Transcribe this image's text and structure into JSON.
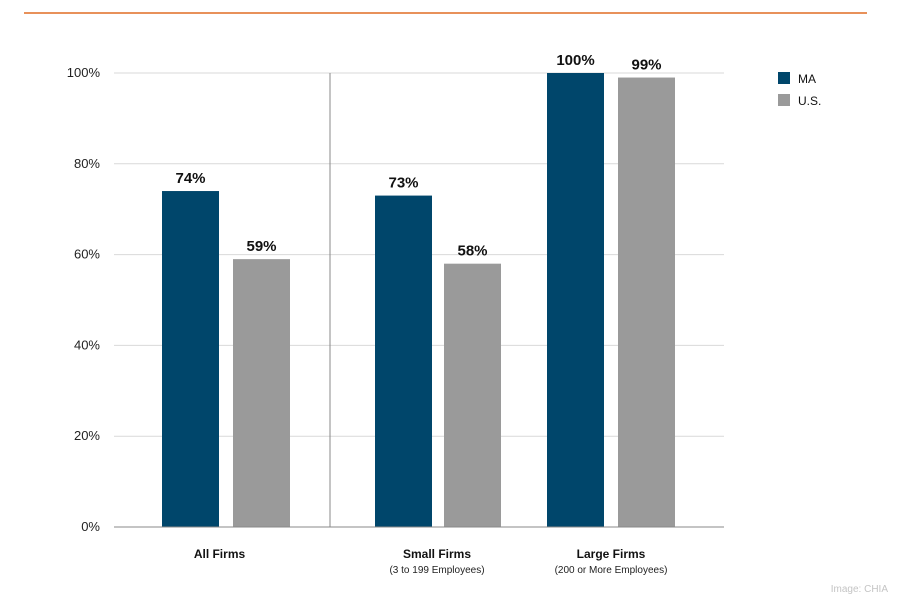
{
  "colors": {
    "ma": "#00466b",
    "us": "#9a9a9a",
    "rule": "#e8915a",
    "grid": "#d9d9d9",
    "axis": "#888888"
  },
  "credit": "Image: CHIA",
  "chart_data": {
    "type": "bar",
    "title": "",
    "xlabel": "",
    "ylabel": "",
    "ylim": [
      0,
      100
    ],
    "yticks": [
      {
        "value": 0,
        "label": "0%"
      },
      {
        "value": 20,
        "label": "20%"
      },
      {
        "value": 40,
        "label": "40%"
      },
      {
        "value": 60,
        "label": "60%"
      },
      {
        "value": 80,
        "label": "80%"
      },
      {
        "value": 100,
        "label": "100%"
      }
    ],
    "grid": true,
    "legend_position": "top-right",
    "categories": [
      "All Firms",
      "Small Firms",
      "Large Firms"
    ],
    "category_sublabels": [
      "",
      "(3 to 199 Employees)",
      "(200 or More Employees)"
    ],
    "series": [
      {
        "name": "MA",
        "color": "#00466b",
        "values": [
          74,
          73,
          100
        ],
        "labels": [
          "74%",
          "73%",
          "100%"
        ]
      },
      {
        "name": "U.S.",
        "color": "#9a9a9a",
        "values": [
          59,
          58,
          99
        ],
        "labels": [
          "59%",
          "58%",
          "99%"
        ]
      }
    ]
  }
}
